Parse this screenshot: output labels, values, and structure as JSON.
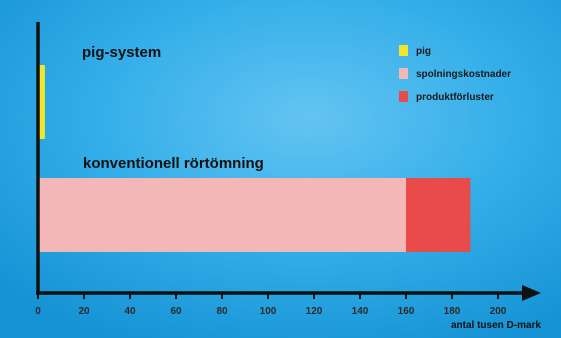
{
  "chart_data": {
    "type": "bar",
    "orientation": "horizontal",
    "stacked": true,
    "categories": [
      "pig-system",
      "konventionell rörtömning"
    ],
    "series": [
      {
        "name": "pig",
        "color": "#f2e52c",
        "values": [
          3,
          0
        ]
      },
      {
        "name": "spolningskostnader",
        "color": "#f3b7b7",
        "values": [
          0,
          160
        ]
      },
      {
        "name": "produktförluster",
        "color": "#e94b4b",
        "values": [
          0,
          28
        ]
      }
    ],
    "x_ticks": [
      0,
      20,
      40,
      60,
      80,
      100,
      120,
      140,
      160,
      180,
      200
    ],
    "xlabel": "antal tusen D-mark",
    "xlim": [
      0,
      200
    ],
    "legend_position": "top-right",
    "grid": false,
    "background_color": "#1fa0e0"
  }
}
